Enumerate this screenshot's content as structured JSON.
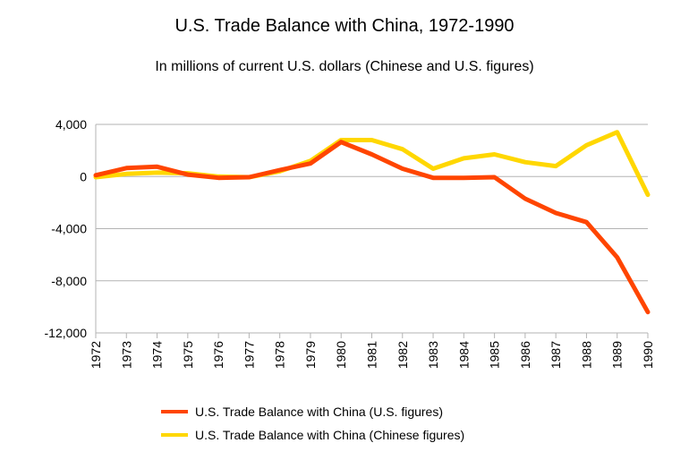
{
  "chart_data": {
    "type": "line",
    "title": "U.S. Trade Balance with China, 1972-1990",
    "subtitle": "In millions of current U.S. dollars (Chinese and U.S. figures)",
    "xlabel": "",
    "ylabel": "",
    "x": [
      "1972",
      "1973",
      "1974",
      "1975",
      "1976",
      "1977",
      "1978",
      "1979",
      "1980",
      "1981",
      "1982",
      "1983",
      "1984",
      "1985",
      "1986",
      "1987",
      "1988",
      "1989",
      "1990"
    ],
    "ylim": [
      -12000,
      4000
    ],
    "yticks": [
      4000,
      0,
      -4000,
      -8000,
      -12000
    ],
    "ytick_labels": [
      "4,000",
      "0",
      "-4,000",
      "-8,000",
      "-12,000"
    ],
    "grid": "horizontal",
    "legend_position": "bottom",
    "series": [
      {
        "name": "U.S. Trade Balance with China (U.S. figures)",
        "color": "#ff4500",
        "values": [
          100,
          650,
          750,
          150,
          -100,
          -50,
          500,
          1000,
          2650,
          1700,
          600,
          -100,
          -100,
          -50,
          -1700,
          -2800,
          -3500,
          -6200,
          -10400
        ]
      },
      {
        "name": "U.S. Trade Balance with China (Chinese figures)",
        "color": "#ffd700",
        "values": [
          -50,
          200,
          300,
          250,
          0,
          -50,
          400,
          1200,
          2800,
          2800,
          2100,
          600,
          1400,
          1700,
          1100,
          800,
          2400,
          3400,
          -1400
        ]
      }
    ]
  }
}
